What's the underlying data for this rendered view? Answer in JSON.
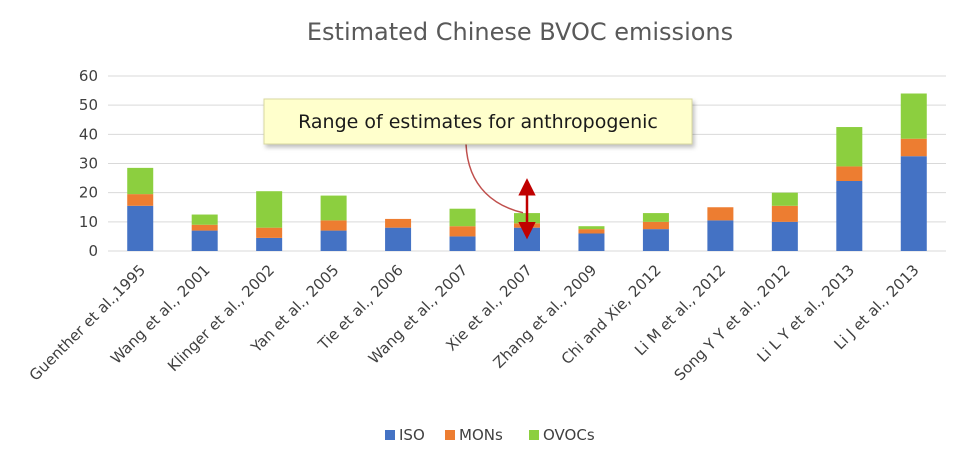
{
  "chart_data": {
    "type": "bar",
    "stacked": true,
    "title": "Estimated Chinese BVOC emissions",
    "xlabel": "",
    "ylabel": "",
    "ylim": [
      0,
      60
    ],
    "yticks": [
      0,
      10,
      20,
      30,
      40,
      50,
      60
    ],
    "grid": true,
    "legend_position": "bottom",
    "categories": [
      "Guenther et al.,1995",
      "Wang et al., 2001",
      "Klinger et al., 2002",
      "Yan et al., 2005",
      "Tie et al., 2006",
      "Wang et al., 2007",
      "Xie et al., 2007",
      "Zhang et al., 2009",
      "Chi and Xie, 2012",
      "Li M et al., 2012",
      "Song Y Y et al., 2012",
      "Li L Y et al., 2013",
      "Li J et al., 2013"
    ],
    "series": [
      {
        "name": "ISO",
        "color": "#4472c4",
        "values": [
          15.5,
          7,
          4.5,
          7,
          8,
          5,
          8,
          6,
          7.5,
          10.5,
          10,
          24,
          32.5
        ]
      },
      {
        "name": "MONs",
        "color": "#ed7d31",
        "values": [
          4,
          2,
          3.5,
          3.5,
          3,
          3.5,
          1.5,
          1.5,
          2.5,
          4.5,
          5.5,
          5,
          6
        ]
      },
      {
        "name": "OVOCs",
        "color": "#8ccf3f",
        "values": [
          9,
          3.5,
          12.5,
          8.5,
          0,
          6,
          3.5,
          1,
          3,
          0,
          4.5,
          13.5,
          15.5
        ]
      }
    ],
    "annotation": {
      "text": "Range of estimates for anthropogenic",
      "target_category": "Xie et al., 2007",
      "range": [
        7,
        22
      ],
      "arrow_color": "#c00000"
    }
  }
}
